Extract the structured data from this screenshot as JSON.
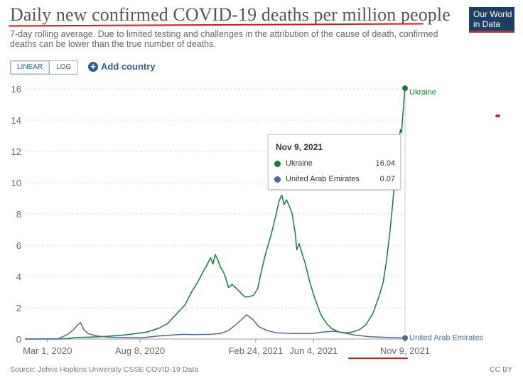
{
  "header": {
    "title": "Daily new confirmed COVID-19 deaths per million people",
    "subtitle": "7-day rolling average. Due to limited testing and challenges in the attribution of the cause of death, confirmed deaths can be lower than the true number of deaths.",
    "logo_line1": "Our World",
    "logo_line2": "in Data"
  },
  "controls": {
    "linear_label": "LINEAR",
    "log_label": "LOG",
    "add_country_label": "Add country"
  },
  "tooltip": {
    "date": "Nov 9, 2021",
    "rows": [
      {
        "name": "Ukraine",
        "value": "16.04",
        "color": "#1a7a3c"
      },
      {
        "name": "United Arab Emirates",
        "value": "0.07",
        "color": "#4f6a94"
      }
    ]
  },
  "footer": {
    "source": "Source: Johns Hopkins University CSSE COVID-19 Data",
    "license": "CC BY"
  },
  "chart_data": {
    "type": "line",
    "title": "Daily new confirmed COVID-19 deaths per million people",
    "xlabel": "",
    "ylabel": "",
    "ylim": [
      0,
      16
    ],
    "yticks": [
      0,
      2,
      4,
      6,
      8,
      10,
      12,
      14,
      16
    ],
    "x_tick_labels": [
      "Mar 1, 2020",
      "Aug 8, 2020",
      "Feb 24, 2021",
      "Jun 4, 2021",
      "Nov 9, 2021"
    ],
    "x_tick_dates": [
      "2020-03-01",
      "2020-08-08",
      "2021-02-24",
      "2021-06-04",
      "2021-11-09"
    ],
    "grid": "horizontal dashed",
    "legend": "end-of-line labels",
    "series": [
      {
        "name": "Ukraine",
        "color": "#1a7a3c",
        "points": [
          [
            "2020-01-22",
            0
          ],
          [
            "2020-03-15",
            0
          ],
          [
            "2020-04-01",
            0.02
          ],
          [
            "2020-04-20",
            0.1
          ],
          [
            "2020-05-10",
            0.12
          ],
          [
            "2020-06-01",
            0.15
          ],
          [
            "2020-06-20",
            0.2
          ],
          [
            "2020-07-10",
            0.25
          ],
          [
            "2020-08-01",
            0.35
          ],
          [
            "2020-08-20",
            0.45
          ],
          [
            "2020-09-10",
            0.7
          ],
          [
            "2020-09-25",
            1.0
          ],
          [
            "2020-10-10",
            1.6
          ],
          [
            "2020-10-25",
            2.2
          ],
          [
            "2020-11-05",
            3.0
          ],
          [
            "2020-11-15",
            3.6
          ],
          [
            "2020-11-25",
            4.3
          ],
          [
            "2020-12-01",
            4.7
          ],
          [
            "2020-12-08",
            5.2
          ],
          [
            "2020-12-12",
            4.8
          ],
          [
            "2020-12-16",
            5.4
          ],
          [
            "2020-12-20",
            5.1
          ],
          [
            "2020-12-25",
            4.6
          ],
          [
            "2020-12-30",
            4.3
          ],
          [
            "2021-01-03",
            3.9
          ],
          [
            "2021-01-08",
            3.3
          ],
          [
            "2021-01-14",
            3.5
          ],
          [
            "2021-01-20",
            3.3
          ],
          [
            "2021-01-28",
            3.0
          ],
          [
            "2021-02-05",
            2.7
          ],
          [
            "2021-02-12",
            2.7
          ],
          [
            "2021-02-20",
            2.8
          ],
          [
            "2021-02-27",
            3.2
          ],
          [
            "2021-03-06",
            4.4
          ],
          [
            "2021-03-14",
            5.6
          ],
          [
            "2021-03-22",
            6.6
          ],
          [
            "2021-03-30",
            7.8
          ],
          [
            "2021-04-05",
            8.8
          ],
          [
            "2021-04-10",
            9.2
          ],
          [
            "2021-04-14",
            8.6
          ],
          [
            "2021-04-18",
            8.9
          ],
          [
            "2021-04-22",
            8.6
          ],
          [
            "2021-04-28",
            8.0
          ],
          [
            "2021-05-03",
            6.8
          ],
          [
            "2021-05-06",
            5.7
          ],
          [
            "2021-05-10",
            6.1
          ],
          [
            "2021-05-14",
            5.6
          ],
          [
            "2021-05-20",
            4.9
          ],
          [
            "2021-05-28",
            3.7
          ],
          [
            "2021-06-06",
            2.6
          ],
          [
            "2021-06-16",
            1.6
          ],
          [
            "2021-06-26",
            1.0
          ],
          [
            "2021-07-06",
            0.65
          ],
          [
            "2021-07-18",
            0.45
          ],
          [
            "2021-07-30",
            0.4
          ],
          [
            "2021-08-10",
            0.45
          ],
          [
            "2021-08-22",
            0.6
          ],
          [
            "2021-09-02",
            0.9
          ],
          [
            "2021-09-14",
            1.6
          ],
          [
            "2021-09-24",
            2.6
          ],
          [
            "2021-10-02",
            3.6
          ],
          [
            "2021-10-08",
            5.0
          ],
          [
            "2021-10-14",
            6.9
          ],
          [
            "2021-10-19",
            8.8
          ],
          [
            "2021-10-24",
            11.0
          ],
          [
            "2021-10-28",
            12.3
          ],
          [
            "2021-11-01",
            13.4
          ],
          [
            "2021-11-03",
            13.2
          ],
          [
            "2021-11-05",
            14.2
          ],
          [
            "2021-11-07",
            15.2
          ],
          [
            "2021-11-09",
            16.04
          ]
        ]
      },
      {
        "name": "United Arab Emirates",
        "color": "#4f6a94",
        "points": [
          [
            "2020-01-22",
            0
          ],
          [
            "2020-03-20",
            0.02
          ],
          [
            "2020-04-05",
            0.3
          ],
          [
            "2020-04-15",
            0.6
          ],
          [
            "2020-04-22",
            0.9
          ],
          [
            "2020-04-27",
            1.05
          ],
          [
            "2020-05-03",
            0.6
          ],
          [
            "2020-05-10",
            0.35
          ],
          [
            "2020-05-25",
            0.2
          ],
          [
            "2020-06-15",
            0.12
          ],
          [
            "2020-07-10",
            0.1
          ],
          [
            "2020-08-10",
            0.08
          ],
          [
            "2020-09-10",
            0.2
          ],
          [
            "2020-10-01",
            0.25
          ],
          [
            "2020-10-20",
            0.3
          ],
          [
            "2020-11-10",
            0.28
          ],
          [
            "2020-12-05",
            0.3
          ],
          [
            "2020-12-25",
            0.35
          ],
          [
            "2021-01-08",
            0.55
          ],
          [
            "2021-01-20",
            0.9
          ],
          [
            "2021-02-01",
            1.3
          ],
          [
            "2021-02-08",
            1.55
          ],
          [
            "2021-02-14",
            1.4
          ],
          [
            "2021-02-20",
            1.2
          ],
          [
            "2021-03-01",
            0.8
          ],
          [
            "2021-03-15",
            0.55
          ],
          [
            "2021-04-01",
            0.4
          ],
          [
            "2021-05-01",
            0.35
          ],
          [
            "2021-06-01",
            0.35
          ],
          [
            "2021-06-20",
            0.45
          ],
          [
            "2021-07-10",
            0.5
          ],
          [
            "2021-07-25",
            0.4
          ],
          [
            "2021-08-15",
            0.25
          ],
          [
            "2021-09-10",
            0.15
          ],
          [
            "2021-10-10",
            0.1
          ],
          [
            "2021-11-09",
            0.07
          ]
        ]
      }
    ]
  }
}
